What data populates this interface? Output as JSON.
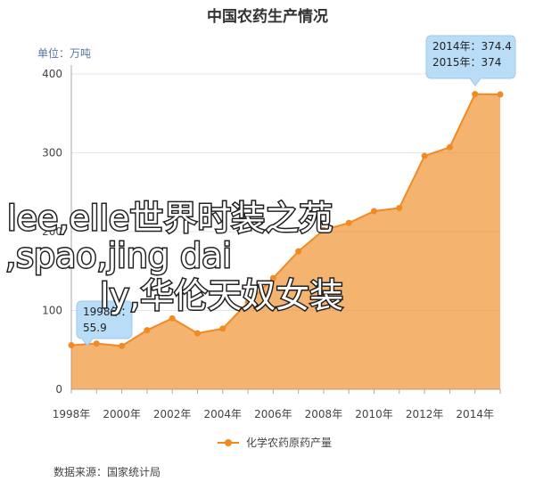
{
  "chart_data": {
    "type": "area",
    "title": "中国农药生产情况",
    "unit_label": "单位：万吨",
    "categories": [
      "1998年",
      null,
      "2000年",
      null,
      "2002年",
      null,
      "2004年",
      null,
      "2006年",
      null,
      "2008年",
      null,
      "2010年",
      null,
      "2012年",
      null,
      "2014年",
      null
    ],
    "series": [
      {
        "name": "化学农药原药产量",
        "color": "#f08a24",
        "values": [
          55.9,
          58,
          55,
          75,
          90,
          71,
          77,
          110,
          141,
          175,
          202,
          211,
          226,
          230,
          296,
          307,
          374.4,
          374
        ]
      }
    ],
    "ylim": [
      0,
      400
    ],
    "yticks": [
      0,
      100,
      200,
      300,
      400
    ],
    "grid": true,
    "annotations": [
      "2014年：374.4",
      "2015年：374",
      "1998年：",
      "55.9"
    ],
    "source": "数据来源：国家统计局"
  },
  "overlay_text": [
    "lee,elle世界时装之苑",
    ",spao,jing dai",
    "ly,华伦天奴女装"
  ]
}
